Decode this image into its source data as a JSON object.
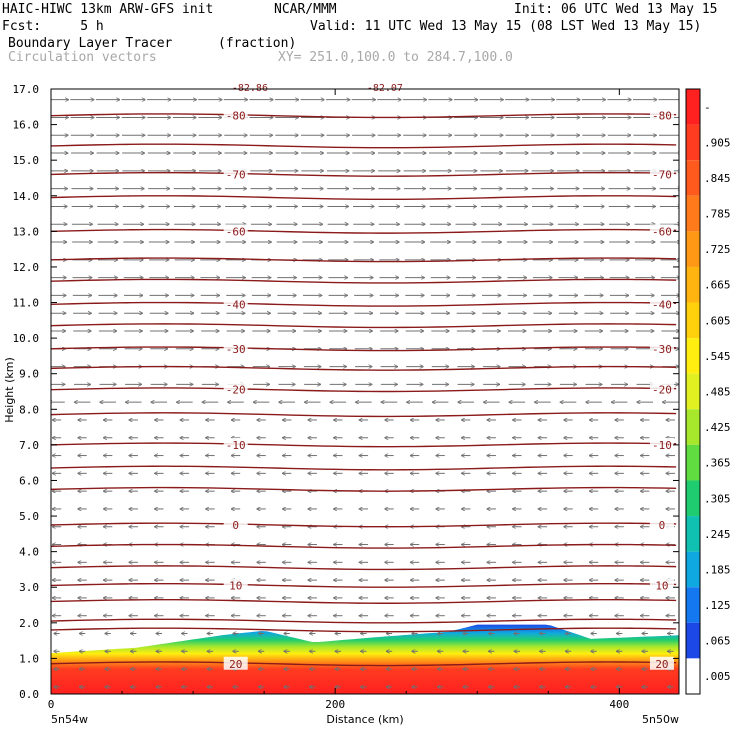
{
  "header": {
    "left_line1": "HAIC-HIWC 13km ARW-GFS init",
    "center_line1": "NCAR/MMM",
    "right_line1": "Init: 06 UTC Wed 13 May 15",
    "left_line2": "Fcst:     5 h",
    "right_line2": "Valid: 11 UTC Wed 13 May 15 (08 LST Wed 13 May 15)",
    "field_name": "Boundary Layer Tracer",
    "field_units": "(fraction)",
    "vector_name": "Circulation vectors",
    "xy_range": "XY= 251.0,100.0 to 284.7,100.0"
  },
  "chart_data": {
    "type": "heatmap",
    "title": "Boundary Layer Tracer",
    "xlabel": "Distance (km)",
    "ylabel": "Height (km)",
    "xlim": [
      0,
      442
    ],
    "ylim": [
      0,
      17
    ],
    "x_ticks": [
      0,
      200,
      400
    ],
    "y_ticks": [
      "0.0",
      "1.0",
      "2.0",
      "3.0",
      "4.0",
      "5.0",
      "6.0",
      "7.0",
      "8.0",
      "9.0",
      "10.0",
      "11.0",
      "12.0",
      "13.0",
      "14.0",
      "15.0",
      "16.0",
      "17.0"
    ],
    "x_endpoint_labels": [
      "5n54w",
      "5n50w"
    ],
    "colorbar_labels": [
      "-",
      ".905",
      ".845",
      ".785",
      ".725",
      ".665",
      ".605",
      ".545",
      ".485",
      ".425",
      ".365",
      ".305",
      ".245",
      ".185",
      ".125",
      ".065",
      ".005"
    ],
    "colorbar_colors": [
      "#ff2020",
      "#ff3c20",
      "#ff5a1e",
      "#ff7a1a",
      "#ff9814",
      "#ffb410",
      "#ffd00c",
      "#ffee10",
      "#e0f020",
      "#a8e82c",
      "#60dc40",
      "#20cc70",
      "#10c0b0",
      "#10a8e0",
      "#1478f0",
      "#1c48e8",
      "#ffffff"
    ],
    "tracer_top_km": [
      [
        0,
        1.15
      ],
      [
        60,
        1.3
      ],
      [
        120,
        1.65
      ],
      [
        150,
        1.78
      ],
      [
        185,
        1.45
      ],
      [
        230,
        1.6
      ],
      [
        280,
        1.75
      ],
      [
        300,
        1.95
      ],
      [
        350,
        1.95
      ],
      [
        380,
        1.55
      ],
      [
        442,
        1.65
      ]
    ],
    "temperature_contours": [
      {
        "label": "-80",
        "height_km": 16.25
      },
      {
        "label": "-70",
        "height_km": 14.6
      },
      {
        "label": "-60",
        "height_km": 13.0
      },
      {
        "label": "-40",
        "height_km": 10.95
      },
      {
        "label": "-30",
        "height_km": 9.7
      },
      {
        "label": "-20",
        "height_km": 8.55
      },
      {
        "label": "-10",
        "height_km": 7.0
      },
      {
        "label": "0",
        "height_km": 4.75
      },
      {
        "label": "10",
        "height_km": 3.05
      },
      {
        "label": "20",
        "height_km": 0.85
      }
    ],
    "top_partial_labels": [
      "-82.86",
      "-82.07"
    ],
    "extra_contour_heights_km": [
      15.4,
      13.95,
      12.2,
      11.6,
      10.35,
      9.15,
      7.85,
      6.35,
      5.75,
      4.15,
      3.55,
      2.6,
      2.05,
      1.8
    ],
    "colors": {
      "contour": "#8b1a1a",
      "vector": "#707070",
      "frame": "#000000"
    }
  }
}
